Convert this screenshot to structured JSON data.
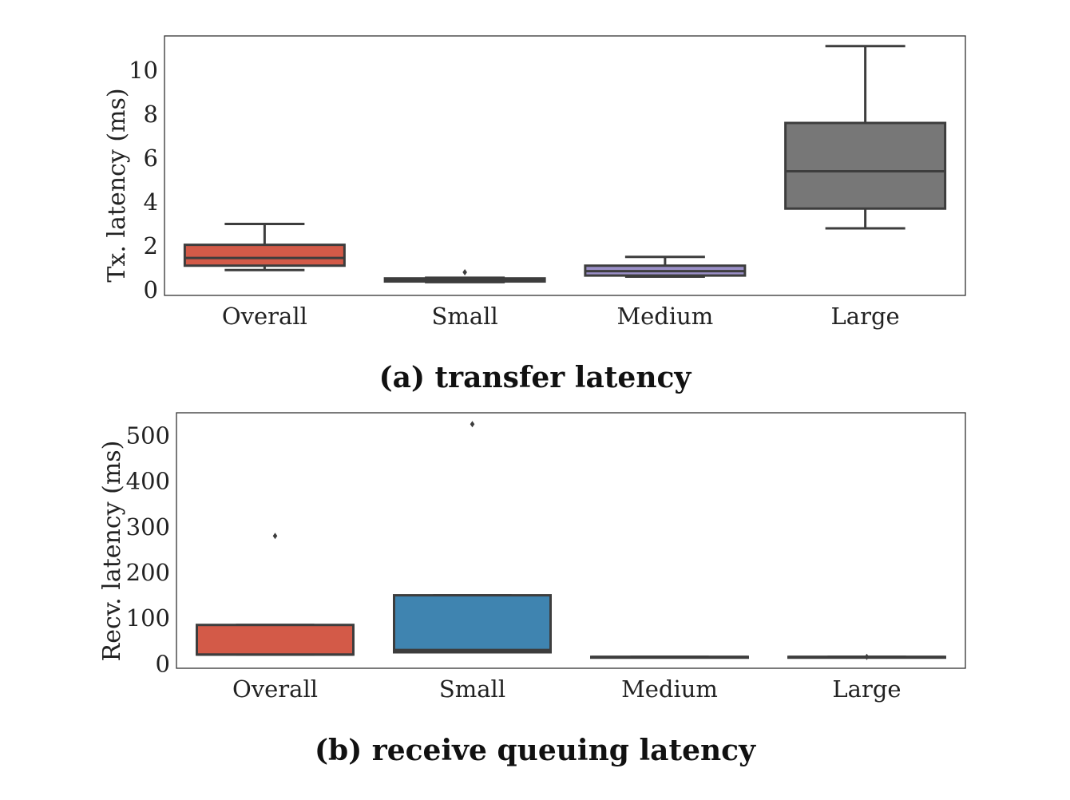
{
  "chart_data": [
    {
      "type": "box",
      "caption": "(a) transfer latency",
      "ylabel": "Tx. latency (ms)",
      "ylim": [
        0,
        11.6
      ],
      "yticks": [
        0,
        2,
        4,
        6,
        8,
        10
      ],
      "categories": [
        "Overall",
        "Small",
        "Medium",
        "Large"
      ],
      "boxes": [
        {
          "min": 0.9,
          "q1": 1.1,
          "median": 1.45,
          "q3": 2.05,
          "max": 3.0,
          "color": "#d35a48",
          "fliers": []
        },
        {
          "min": 0.35,
          "q1": 0.38,
          "median": 0.42,
          "q3": 0.52,
          "max": 0.55,
          "color": "#3f84b0",
          "fliers": [
            0.8
          ]
        },
        {
          "min": 0.6,
          "q1": 0.65,
          "median": 0.85,
          "q3": 1.1,
          "max": 1.5,
          "color": "#9a8fc7",
          "fliers": []
        },
        {
          "min": 2.8,
          "q1": 3.7,
          "median": 5.4,
          "q3": 7.6,
          "max": 11.1,
          "color": "#777777",
          "fliers": []
        }
      ]
    },
    {
      "type": "box",
      "caption": "(b) receive queuing latency",
      "ylabel": "Recv. latency (ms)",
      "ylim": [
        -10,
        550
      ],
      "yticks": [
        0,
        100,
        200,
        300,
        400,
        500
      ],
      "categories": [
        "Overall",
        "Small",
        "Medium",
        "Large"
      ],
      "boxes": [
        {
          "min": 20,
          "q1": 20,
          "median": 20,
          "q3": 85,
          "max": 85,
          "color": "#d35a48",
          "fliers": [
            280
          ]
        },
        {
          "min": 25,
          "q1": 25,
          "median": 30,
          "q3": 150,
          "max": 150,
          "color": "#3f84b0",
          "fliers": [
            525
          ]
        },
        {
          "min": 15,
          "q1": 15,
          "median": 15,
          "q3": 15,
          "max": 15,
          "color": "#9a8fc7",
          "fliers": []
        },
        {
          "min": 15,
          "q1": 15,
          "median": 15,
          "q3": 15,
          "max": 15,
          "color": "#777777",
          "fliers": [
            15
          ]
        }
      ]
    }
  ]
}
